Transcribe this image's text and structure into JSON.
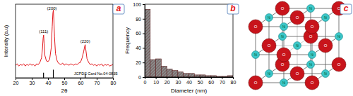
{
  "chart_data": [
    {
      "type": "line",
      "title": "a",
      "x_label": "2θ",
      "y_label": "Intensity (a.u)",
      "x": [
        20,
        21,
        22,
        23,
        24,
        25,
        26,
        27,
        28,
        29,
        30,
        31,
        32,
        33,
        34,
        35,
        36,
        36.6,
        37,
        37.3,
        37.6,
        38,
        39,
        40,
        41,
        42,
        42.6,
        43,
        43.3,
        43.6,
        44,
        44.6,
        45.5,
        46,
        47,
        48,
        49,
        50,
        51,
        52,
        53,
        54,
        55,
        56,
        57,
        58,
        59,
        60,
        61,
        62,
        62.6,
        62.9,
        63.3,
        64,
        65,
        66,
        67,
        68,
        69,
        70,
        71,
        72,
        73,
        74,
        75,
        76,
        77,
        78,
        79,
        80
      ],
      "values": [
        17,
        19,
        16,
        18,
        17,
        19,
        16,
        18,
        17,
        19,
        17,
        18,
        16,
        19,
        18,
        21,
        27,
        40,
        54,
        58,
        47,
        31,
        23,
        22,
        25,
        41,
        70,
        88,
        92,
        79,
        56,
        33,
        24,
        21,
        19,
        18,
        20,
        17,
        19,
        18,
        17,
        19,
        18,
        17,
        19,
        18,
        20,
        21,
        27,
        36,
        43,
        45,
        38,
        26,
        21,
        18,
        19,
        17,
        18,
        16,
        18,
        17,
        19,
        16,
        18,
        17,
        18,
        16,
        17,
        18
      ],
      "color": "#e3161b",
      "xlim": [
        20,
        80
      ],
      "xticks": [
        20,
        30,
        40,
        50,
        60,
        70,
        80
      ],
      "ylim": [
        0,
        100
      ],
      "tick_labels": "x",
      "annotations": [
        {
          "text": "(111)",
          "x": 37.3
        },
        {
          "text": "(200)",
          "x": 43.3
        },
        {
          "text": "(220)",
          "x": 62.9
        }
      ],
      "reference": {
        "label": "JCPDS Card No.04-0835",
        "x": [
          37.25,
          43.27,
          62.87
        ],
        "values": [
          7,
          11,
          5
        ]
      }
    },
    {
      "type": "histogram",
      "title": "b",
      "x_label": "Diameter (nm)",
      "y_label": "Frequency",
      "bins": [
        0,
        5,
        10,
        15,
        20,
        25,
        30,
        35,
        40,
        45,
        50,
        55,
        60,
        65,
        70,
        75,
        80
      ],
      "values": [
        93,
        24,
        25,
        15,
        11,
        9,
        7,
        5,
        5,
        3,
        3,
        2,
        2,
        1,
        1,
        2
      ],
      "color": "#8c8c8c",
      "xlim": [
        0,
        80
      ],
      "xticks": [
        0,
        10,
        20,
        30,
        40,
        50,
        60,
        70,
        80
      ],
      "ylim": [
        0,
        100
      ],
      "yticks": [
        0,
        20,
        40,
        60,
        80,
        100
      ]
    }
  ],
  "diagram": {
    "title": "c",
    "large_atom": "O",
    "small_atom": "Ni"
  }
}
